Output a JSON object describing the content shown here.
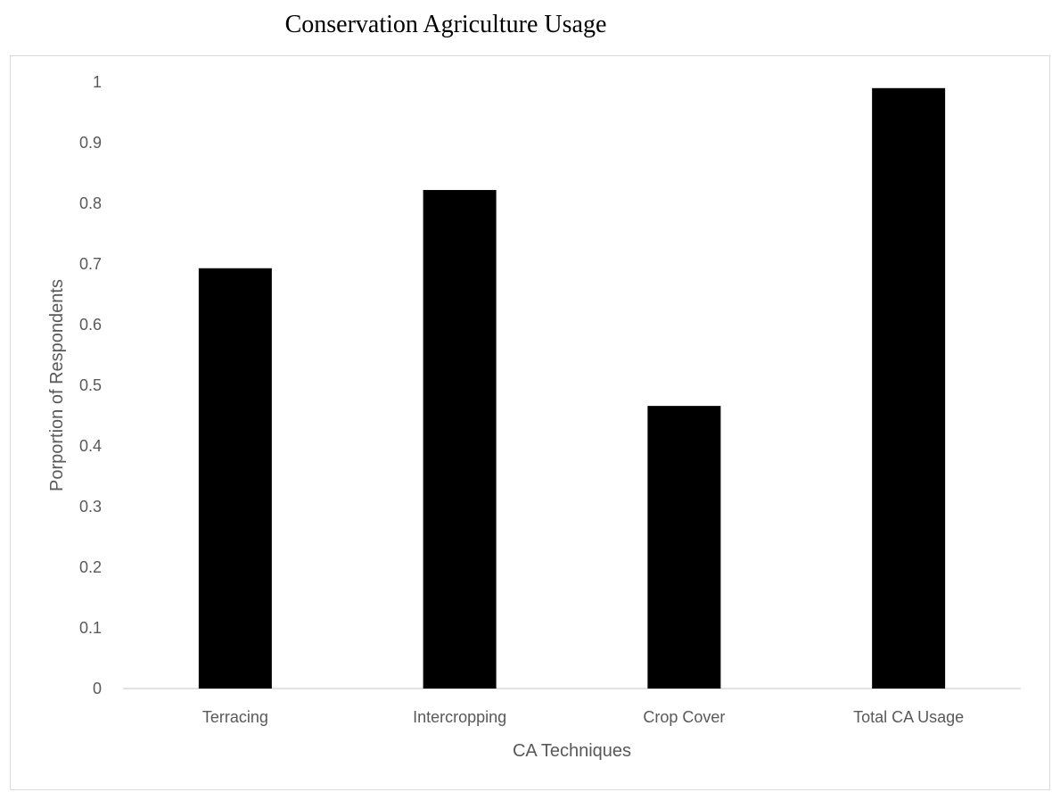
{
  "chart_data": {
    "type": "bar",
    "title": "Conservation Agriculture Usage",
    "xlabel": "CA Techniques",
    "ylabel": "Porportion of Respondents",
    "categories": [
      "Terracing",
      "Intercropping",
      "Crop Cover",
      "Total CA Usage"
    ],
    "values": [
      0.693,
      0.822,
      0.466,
      0.99
    ],
    "ylim": [
      0,
      1
    ],
    "yticks": [
      "0",
      "0.1",
      "0.2",
      "0.3",
      "0.4",
      "0.5",
      "0.6",
      "0.7",
      "0.8",
      "0.9",
      "1"
    ],
    "grid": false,
    "legend": "none",
    "bar_color": "#000000",
    "axis_color": "#d9d9d9"
  }
}
